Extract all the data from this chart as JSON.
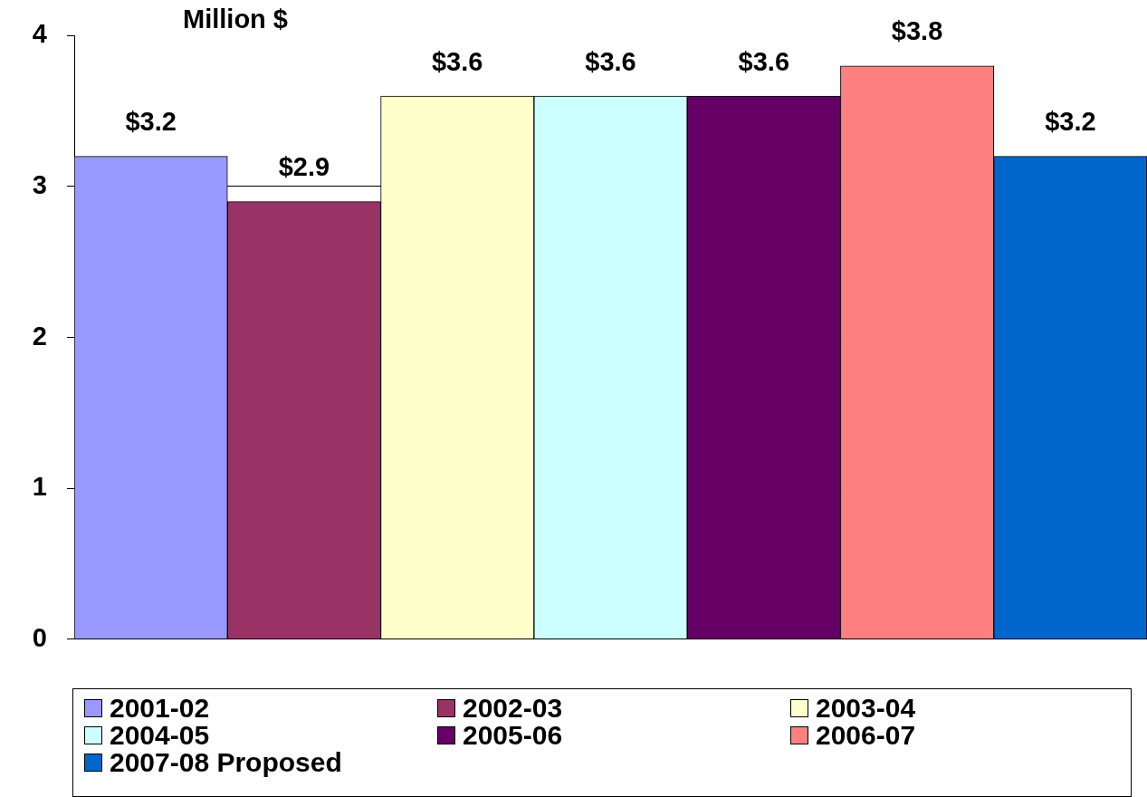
{
  "chart_data": {
    "type": "bar",
    "ylabel": "Million $",
    "categories": [
      null
    ],
    "ylim": [
      0,
      4
    ],
    "yticks": [
      0,
      1,
      2,
      3,
      4
    ],
    "grid": "y",
    "legend": "bottom",
    "series": [
      {
        "name": "2001-02",
        "color": "#9999ff",
        "values": [
          3.2
        ],
        "value_labels": [
          "$3.2"
        ]
      },
      {
        "name": "2002-03",
        "color": "#993366",
        "values": [
          2.9
        ],
        "value_labels": [
          "$2.9"
        ]
      },
      {
        "name": "2003-04",
        "color": "#ffffcc",
        "values": [
          3.6
        ],
        "value_labels": [
          "$3.6"
        ]
      },
      {
        "name": "2004-05",
        "color": "#ccffff",
        "values": [
          3.6
        ],
        "value_labels": [
          "$3.6"
        ]
      },
      {
        "name": "2005-06",
        "color": "#660066",
        "values": [
          3.6
        ],
        "value_labels": [
          "$3.6"
        ]
      },
      {
        "name": "2006-07",
        "color": "#ff8080",
        "values": [
          3.8
        ],
        "value_labels": [
          "$3.8"
        ]
      },
      {
        "name": "2007-08 Proposed",
        "color": "#0066cc",
        "values": [
          3.2
        ],
        "value_labels": [
          "$3.2"
        ]
      }
    ]
  }
}
